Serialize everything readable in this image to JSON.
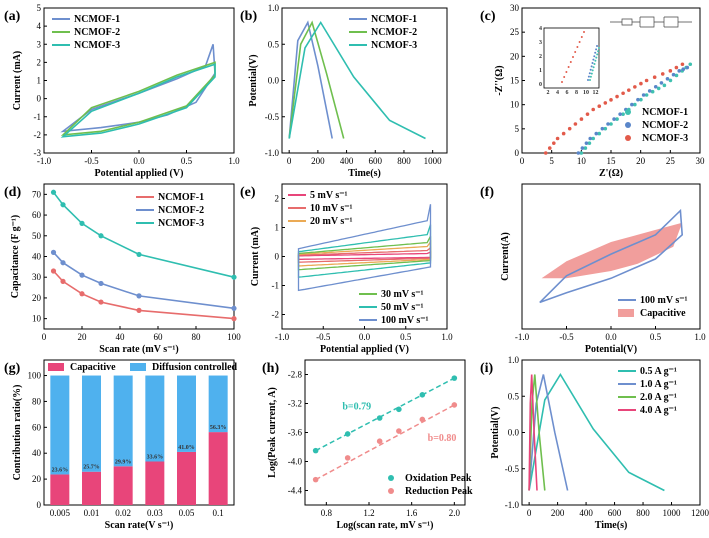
{
  "colors": {
    "blue": "#6e8fce",
    "green": "#6fbf4e",
    "teal": "#2fbeb0",
    "red": "#e76c6c",
    "pink": "#e8457a",
    "lightblue": "#4fb1ee",
    "orange": "#ebaa55",
    "yellowgreen": "#b3d44a",
    "navy": "#5a73b5",
    "salmon": "#f08c8c",
    "capfill": "#f19e9c"
  },
  "chart_data": [
    {
      "id": "a",
      "label": "(a)",
      "type": "line",
      "xlabel": "Potential applied (V)",
      "ylabel": "Current (mA)",
      "xlim": [
        -1.0,
        1.0
      ],
      "ylim": [
        -3,
        5
      ],
      "xticks": [
        -1.0,
        -0.5,
        0.0,
        0.5,
        1.0
      ],
      "xtick_labels": [
        "-1.0",
        "-0.5",
        "0.0",
        "0.5",
        "1.0"
      ],
      "yticks": [
        -3,
        -2,
        -1,
        0,
        1,
        2,
        3,
        4,
        5
      ],
      "ytick_labels": [
        "-3",
        "-2",
        "-1",
        "0",
        "1",
        "2",
        "3",
        "4",
        "5"
      ],
      "legend": "top-left",
      "series": [
        {
          "name": "NCMOF-1",
          "color": "#6e8fce",
          "points": [
            [
              -0.8,
              -1.8
            ],
            [
              -0.5,
              -0.6
            ],
            [
              0,
              0.3
            ],
            [
              0.4,
              1.1
            ],
            [
              0.7,
              1.8
            ],
            [
              0.78,
              3.0
            ],
            [
              0.8,
              1.4
            ],
            [
              0.6,
              -0.2
            ],
            [
              0.3,
              -0.9
            ],
            [
              0,
              -1.3
            ],
            [
              -0.4,
              -1.6
            ],
            [
              -0.8,
              -1.8
            ]
          ]
        },
        {
          "name": "NCMOF-2",
          "color": "#6fbf4e",
          "points": [
            [
              -0.8,
              -2.0
            ],
            [
              -0.5,
              -0.5
            ],
            [
              0,
              0.4
            ],
            [
              0.4,
              1.3
            ],
            [
              0.8,
              2.0
            ],
            [
              0.8,
              1.3
            ],
            [
              0.5,
              -0.4
            ],
            [
              0,
              -1.3
            ],
            [
              -0.4,
              -1.8
            ],
            [
              -0.8,
              -2.0
            ]
          ]
        },
        {
          "name": "NCMOF-3",
          "color": "#2fbeb0",
          "points": [
            [
              -0.8,
              -2.1
            ],
            [
              -0.5,
              -0.7
            ],
            [
              0,
              0.3
            ],
            [
              0.4,
              1.2
            ],
            [
              0.8,
              1.9
            ],
            [
              0.8,
              1.2
            ],
            [
              0.5,
              -0.5
            ],
            [
              0,
              -1.4
            ],
            [
              -0.4,
              -1.9
            ],
            [
              -0.8,
              -2.1
            ]
          ]
        }
      ]
    },
    {
      "id": "b",
      "label": "(b)",
      "type": "line",
      "xlabel": "Time(s)",
      "ylabel": "Potential(V)",
      "xlim": [
        -50,
        1100
      ],
      "ylim": [
        -1.0,
        1.0
      ],
      "xticks": [
        0,
        200,
        400,
        600,
        800,
        1000
      ],
      "xtick_labels": [
        "0",
        "200",
        "400",
        "600",
        "800",
        "1000"
      ],
      "yticks": [
        -1.0,
        -0.5,
        0.0,
        0.5,
        1.0
      ],
      "ytick_labels": [
        "-1.0",
        "-0.5",
        "0.0",
        "0.5",
        "1.0"
      ],
      "legend": "top-right",
      "series": [
        {
          "name": "NCMOF-1",
          "color": "#6e8fce",
          "points": [
            [
              0,
              -0.8
            ],
            [
              60,
              0.55
            ],
            [
              130,
              0.8
            ],
            [
              200,
              0.2
            ],
            [
              300,
              -0.8
            ]
          ]
        },
        {
          "name": "NCMOF-2",
          "color": "#6fbf4e",
          "points": [
            [
              0,
              -0.8
            ],
            [
              80,
              0.5
            ],
            [
              160,
              0.8
            ],
            [
              260,
              0.1
            ],
            [
              380,
              -0.8
            ]
          ]
        },
        {
          "name": "NCMOF-3",
          "color": "#2fbeb0",
          "points": [
            [
              0,
              -0.8
            ],
            [
              110,
              0.45
            ],
            [
              220,
              0.8
            ],
            [
              450,
              0.05
            ],
            [
              700,
              -0.55
            ],
            [
              950,
              -0.8
            ]
          ]
        }
      ]
    },
    {
      "id": "c",
      "label": "(c)",
      "type": "scatter",
      "xlabel": "Z'(Ω)",
      "ylabel": "-Z''(Ω)",
      "xlim": [
        0,
        30
      ],
      "ylim": [
        0,
        30
      ],
      "xticks": [
        0,
        5,
        10,
        15,
        20,
        25,
        30
      ],
      "xtick_labels": [
        "0",
        "5",
        "10",
        "15",
        "20",
        "25",
        "30"
      ],
      "yticks": [
        0,
        5,
        10,
        15,
        20,
        25,
        30
      ],
      "ytick_labels": [
        "0",
        "5",
        "10",
        "15",
        "20",
        "25",
        "30"
      ],
      "legend": "bottom-right",
      "series": [
        {
          "name": "NCMOF-1",
          "color": "#3fc1b0",
          "points": [
            [
              10,
              0
            ],
            [
              12,
              3
            ],
            [
              15,
              6
            ],
            [
              18,
              9
            ],
            [
              21,
              12
            ],
            [
              24,
              14
            ],
            [
              27,
              17
            ],
            [
              29,
              19
            ]
          ]
        },
        {
          "name": "NCMOF-2",
          "color": "#5a86c9",
          "points": [
            [
              9.5,
              0
            ],
            [
              11.5,
              3
            ],
            [
              14.5,
              6
            ],
            [
              17.5,
              9
            ],
            [
              20.5,
              12
            ],
            [
              23.5,
              14.5
            ],
            [
              26.5,
              17
            ],
            [
              28.5,
              18
            ]
          ]
        },
        {
          "name": "NCMOF-3",
          "color": "#e25a4a",
          "points": [
            [
              4,
              0
            ],
            [
              6,
              3
            ],
            [
              9,
              6
            ],
            [
              12,
              9
            ],
            [
              15,
              11
            ],
            [
              18,
              13
            ],
            [
              21,
              15
            ],
            [
              25,
              17
            ],
            [
              28,
              19
            ]
          ]
        }
      ],
      "inset": {
        "ticks_x": [
          "2",
          "4",
          "6",
          "8",
          "10",
          "12"
        ],
        "ticks_y": [
          "0",
          "1",
          "2",
          "3",
          "4"
        ]
      }
    },
    {
      "id": "d",
      "label": "(d)",
      "type": "line",
      "xlabel": "Scan rate (mV s⁻¹)",
      "ylabel": "Capacitance (F g⁻¹)",
      "xlim": [
        0,
        100
      ],
      "ylim": [
        5,
        75
      ],
      "xticks": [
        0,
        20,
        40,
        60,
        80,
        100
      ],
      "xtick_labels": [
        "0",
        "20",
        "40",
        "60",
        "80",
        "100"
      ],
      "yticks": [
        10,
        20,
        30,
        40,
        50,
        60,
        70
      ],
      "ytick_labels": [
        "10",
        "20",
        "30",
        "40",
        "50",
        "60",
        "70"
      ],
      "legend": "top-right",
      "series": [
        {
          "name": "NCMOF-1",
          "color": "#e76c6c",
          "points": [
            [
              5,
              33
            ],
            [
              10,
              28
            ],
            [
              20,
              22
            ],
            [
              30,
              18
            ],
            [
              50,
              14
            ],
            [
              100,
              10
            ]
          ]
        },
        {
          "name": "NCMOF-2",
          "color": "#6e8fce",
          "points": [
            [
              5,
              42
            ],
            [
              10,
              37
            ],
            [
              20,
              31
            ],
            [
              30,
              27
            ],
            [
              50,
              21
            ],
            [
              100,
              15
            ]
          ]
        },
        {
          "name": "NCMOF-3",
          "color": "#2fbeb0",
          "points": [
            [
              5,
              71
            ],
            [
              10,
              65
            ],
            [
              20,
              56
            ],
            [
              30,
              50
            ],
            [
              50,
              41
            ],
            [
              100,
              30
            ]
          ]
        }
      ]
    },
    {
      "id": "e",
      "label": "(e)",
      "type": "line",
      "xlabel": "Potential applied (V)",
      "ylabel": "Current (mA)",
      "xlim": [
        -1.0,
        1.0
      ],
      "ylim": [
        -2.5,
        2.5
      ],
      "xticks": [
        -1.0,
        -0.5,
        0.0,
        0.5,
        1.0
      ],
      "xtick_labels": [
        "-1.0",
        "-0.5",
        "0.0",
        "0.5",
        "1.0"
      ],
      "yticks": [
        -2,
        -1,
        0,
        1,
        2
      ],
      "ytick_labels": [
        "-2",
        "-1",
        "0",
        "1",
        "2"
      ],
      "legend": "split",
      "series": [
        {
          "name": "5 mV s⁻¹",
          "color": "#e8457a",
          "amp": 0.15
        },
        {
          "name": "10 mV s⁻¹",
          "color": "#e76c6c",
          "amp": 0.3
        },
        {
          "name": "20 mV s⁻¹",
          "color": "#ebaa55",
          "amp": 0.5
        },
        {
          "name": "30 mV s⁻¹",
          "color": "#6fbf4e",
          "amp": 0.7
        },
        {
          "name": "50 mV s⁻¹",
          "color": "#2fbeb0",
          "amp": 1.1
        },
        {
          "name": "100 mV s⁻¹",
          "color": "#6e8fce",
          "amp": 1.8
        }
      ]
    },
    {
      "id": "f",
      "label": "(f)",
      "type": "area",
      "xlabel": "Potential(V)",
      "ylabel": "Current(A)",
      "xlim": [
        -1.0,
        1.0
      ],
      "ylim": [
        -3,
        3
      ],
      "xticks": [
        -1.0,
        -0.5,
        0.0,
        0.5,
        1.0
      ],
      "xtick_labels": [
        "-1.0",
        "-0.5",
        "0.0",
        "0.5",
        "1.0"
      ],
      "yticks": [],
      "ytick_labels": [],
      "legend": "bottom-right",
      "series": [
        {
          "name": "100 mV s⁻¹",
          "color": "#6e8fce"
        },
        {
          "name": "Capacitive",
          "color": "#f19e9c"
        }
      ]
    },
    {
      "id": "g",
      "label": "(g)",
      "type": "bar",
      "xlabel": "Scan rate(V s⁻¹)",
      "ylabel": "Contribution ratio(%)",
      "ylim": [
        0,
        100
      ],
      "categories": [
        "0.005",
        "0.01",
        "0.02",
        "0.03",
        "0.05",
        "0.1"
      ],
      "yticks": [
        0,
        20,
        40,
        60,
        80,
        100
      ],
      "ytick_labels": [
        "0",
        "20",
        "40",
        "60",
        "80",
        "100"
      ],
      "series": [
        {
          "name": "Capacitive",
          "color": "#e8457a",
          "values": [
            23.6,
            25.7,
            29.9,
            33.6,
            41.0,
            56.3
          ]
        },
        {
          "name": "Diffusion controlled",
          "color": "#4fb1ee",
          "values": [
            76.4,
            74.3,
            70.1,
            66.4,
            59.0,
            43.7
          ]
        }
      ],
      "labels": [
        "23.6%",
        "25.7%",
        "29.9%",
        "33.6%",
        "41.0%",
        "56.3%"
      ]
    },
    {
      "id": "h",
      "label": "(h)",
      "type": "scatter",
      "xlabel": "Log(scan rate, mV s⁻¹)",
      "ylabel": "Log(Peak current, A)",
      "xlim": [
        0.6,
        2.1
      ],
      "ylim": [
        -4.6,
        -2.6
      ],
      "xticks": [
        0.8,
        1.2,
        1.6,
        2.0
      ],
      "xtick_labels": [
        "0.8",
        "1.2",
        "1.6",
        "2.0"
      ],
      "yticks": [
        -4.4,
        -4.0,
        -3.6,
        -3.2,
        -2.8
      ],
      "ytick_labels": [
        "-4.4",
        "-4.0",
        "-3.6",
        "-3.2",
        "-2.8"
      ],
      "legend": "bottom-right",
      "series": [
        {
          "name": "Oxidation Peak",
          "color": "#2fbeb0",
          "points": [
            [
              0.7,
              -3.85
            ],
            [
              1.0,
              -3.62
            ],
            [
              1.3,
              -3.4
            ],
            [
              1.48,
              -3.28
            ],
            [
              1.7,
              -3.08
            ],
            [
              2.0,
              -2.85
            ]
          ],
          "fit": "b=0.79"
        },
        {
          "name": "Reduction Peak",
          "color": "#f08c8c",
          "points": [
            [
              0.7,
              -4.25
            ],
            [
              1.0,
              -3.95
            ],
            [
              1.3,
              -3.72
            ],
            [
              1.48,
              -3.58
            ],
            [
              1.7,
              -3.42
            ],
            [
              2.0,
              -3.22
            ]
          ],
          "fit": "b=0.80"
        }
      ]
    },
    {
      "id": "i",
      "label": "(i)",
      "type": "line",
      "xlabel": "Time(s)",
      "ylabel": "Potential(V)",
      "xlim": [
        -50,
        1200
      ],
      "ylim": [
        -1.0,
        1.0
      ],
      "xticks": [
        0,
        200,
        400,
        600,
        800,
        1000,
        1200
      ],
      "xtick_labels": [
        "0",
        "200",
        "400",
        "600",
        "800",
        "1000",
        "1200"
      ],
      "yticks": [
        -1.0,
        -0.5,
        0.0,
        0.5,
        1.0
      ],
      "ytick_labels": [
        "-1.0",
        "-0.5",
        "0.0",
        "0.5",
        "1.0"
      ],
      "legend": "top-right",
      "series": [
        {
          "name": "0.5 A g⁻¹",
          "color": "#2fbeb0",
          "points": [
            [
              0,
              -0.8
            ],
            [
              110,
              0.45
            ],
            [
              220,
              0.8
            ],
            [
              450,
              0.05
            ],
            [
              700,
              -0.55
            ],
            [
              950,
              -0.8
            ]
          ]
        },
        {
          "name": "1.0 A g⁻¹",
          "color": "#6e8fce",
          "points": [
            [
              0,
              -0.8
            ],
            [
              50,
              0.4
            ],
            [
              100,
              0.8
            ],
            [
              180,
              0.0
            ],
            [
              270,
              -0.8
            ]
          ]
        },
        {
          "name": "2.0 A g⁻¹",
          "color": "#6fbf4e",
          "points": [
            [
              0,
              -0.8
            ],
            [
              20,
              0.4
            ],
            [
              40,
              0.8
            ],
            [
              70,
              0.0
            ],
            [
              110,
              -0.8
            ]
          ]
        },
        {
          "name": "4.0 A g⁻¹",
          "color": "#e8457a",
          "points": [
            [
              0,
              -0.8
            ],
            [
              8,
              0.4
            ],
            [
              18,
              0.8
            ],
            [
              35,
              0.0
            ],
            [
              55,
              -0.8
            ]
          ]
        }
      ]
    }
  ]
}
